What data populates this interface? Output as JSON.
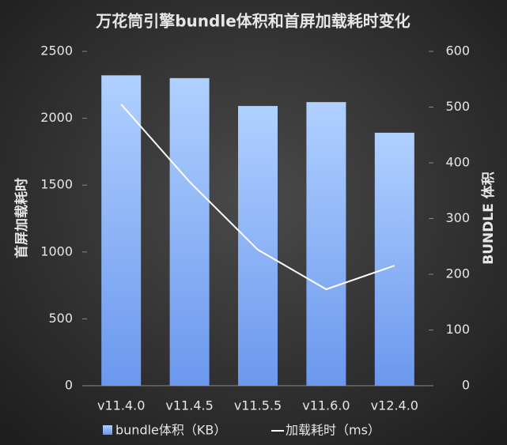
{
  "chart_data": {
    "type": "bar-line",
    "title": "万花筒引擎bundle体积和首屏加载耗时变化",
    "y_label": "首屏加载耗时",
    "y2_label": "BUNDLE 体积",
    "categories": [
      "v11.4.0",
      "v11.4.5",
      "v11.5.5",
      "v11.6.0",
      "v12.4.0"
    ],
    "series": [
      {
        "name": "bundle体积（KB）",
        "type": "bar",
        "axis": "y2",
        "color": "#8fb6f7",
        "values": [
          557,
          552,
          502,
          509,
          454
        ]
      },
      {
        "name": "加载耗时（ms）",
        "type": "line",
        "axis": "y",
        "color": "#ffffff",
        "values": [
          2104,
          1525,
          1017,
          721,
          898
        ]
      }
    ],
    "ylim": [
      0,
      2500
    ],
    "yticks": [
      0,
      500,
      1000,
      1500,
      2000,
      2500
    ],
    "y2lim": [
      0,
      600
    ],
    "y2ticks": [
      0,
      100,
      200,
      300,
      400,
      500,
      600
    ],
    "legend": "bottom"
  }
}
